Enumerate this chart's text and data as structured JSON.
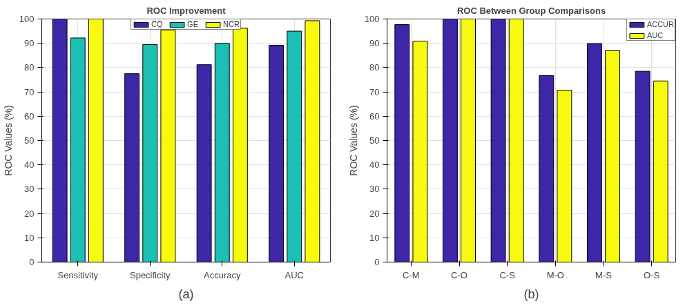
{
  "chart_data": [
    {
      "type": "bar",
      "title": "ROC Improvement",
      "ylabel": "ROC Values (%)",
      "categories": [
        "Sensitivity",
        "Specificity",
        "Accuracy",
        "AUC"
      ],
      "series": [
        {
          "name": "C̅Q̅",
          "color": "#3d26a8",
          "values": [
            100,
            77.5,
            81.2,
            89.2
          ]
        },
        {
          "name": "G̅E̅",
          "color": "#1bbfb4",
          "values": [
            92.2,
            89.5,
            90,
            95
          ]
        },
        {
          "name": "N̅C̅R̅",
          "color": "#f8fa0d",
          "values": [
            100,
            95.5,
            96.2,
            99.3
          ]
        }
      ],
      "ylim": [
        0,
        100
      ],
      "yticks": [
        0,
        10,
        20,
        30,
        40,
        50,
        60,
        70,
        80,
        90,
        100
      ],
      "grid": true,
      "legend": "top",
      "annotations": [
        "(a)"
      ]
    },
    {
      "type": "bar",
      "title": "ROC Between Group Comparisons",
      "ylabel": "ROC Values (%)",
      "categories": [
        "C-M",
        "C-O",
        "C-S",
        "M-O",
        "M-S",
        "O-S"
      ],
      "series": [
        {
          "name": "ACCUR",
          "color": "#3d26a8",
          "values": [
            97.7,
            100,
            100,
            76.7,
            89.9,
            78.5
          ]
        },
        {
          "name": "AUC",
          "color": "#f8fa0d",
          "values": [
            90.9,
            100,
            100,
            70.7,
            87,
            74.5
          ]
        }
      ],
      "ylim": [
        0,
        100
      ],
      "yticks": [
        0,
        10,
        20,
        30,
        40,
        50,
        60,
        70,
        80,
        90,
        100
      ],
      "grid": true,
      "legend": "top right",
      "annotations": [
        "(b)"
      ]
    }
  ]
}
